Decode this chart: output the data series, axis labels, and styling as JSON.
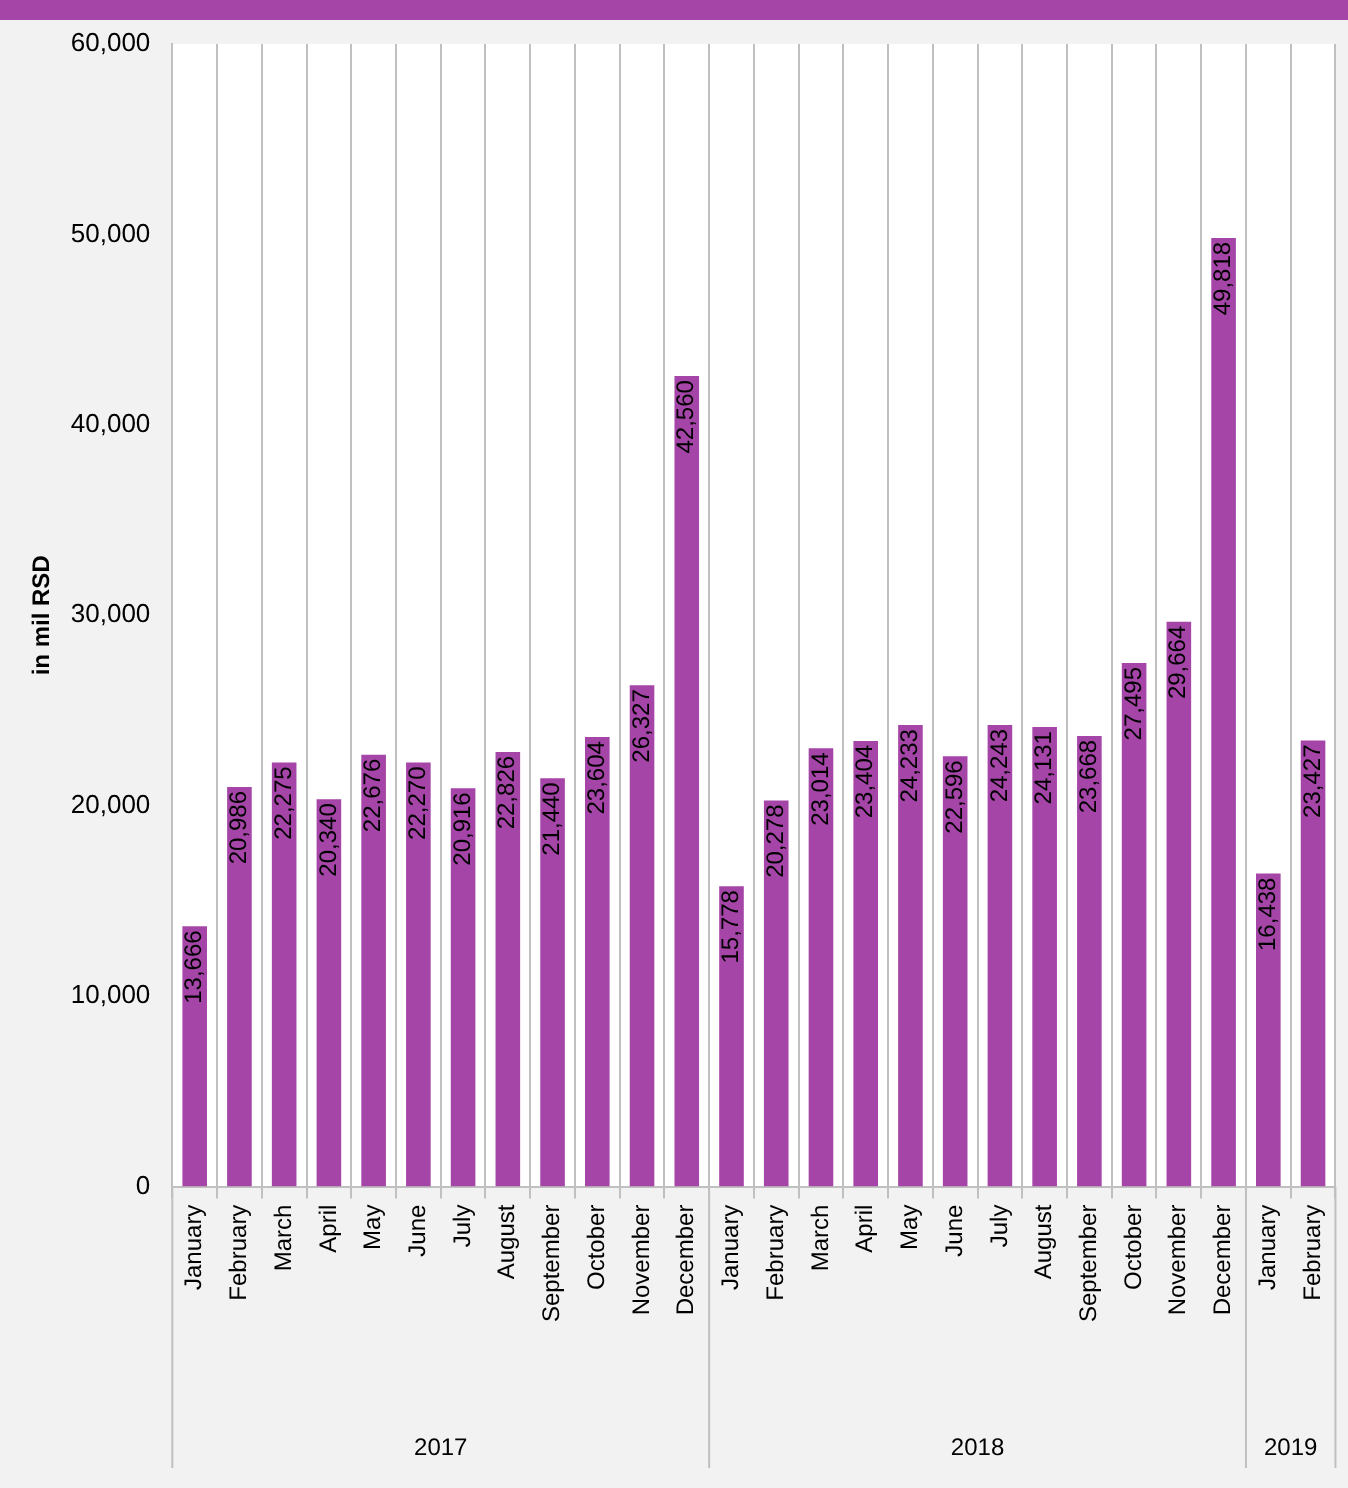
{
  "chart_data": {
    "type": "bar",
    "ylabel": "in mil RSD",
    "categories": [
      "January",
      "February",
      "March",
      "April",
      "May",
      "June",
      "July",
      "August",
      "September",
      "October",
      "November",
      "December",
      "January",
      "February",
      "March",
      "April",
      "May",
      "June",
      "July",
      "August",
      "September",
      "October",
      "November",
      "December",
      "January",
      "February"
    ],
    "values": [
      13666,
      20986,
      22275,
      20340,
      22676,
      22270,
      20916,
      22826,
      21440,
      23604,
      26327,
      42560,
      15778,
      20278,
      23014,
      23404,
      24233,
      22596,
      24243,
      24131,
      23668,
      27495,
      29664,
      49818,
      16438,
      23427
    ],
    "color": "#a545a8",
    "value_labels": [
      "13,666",
      "20,986",
      "22,275",
      "20,340",
      "22,676",
      "22,270",
      "20,916",
      "22,826",
      "21,440",
      "23,604",
      "26,327",
      "42,560",
      "15,778",
      "20,278",
      "23,014",
      "23,404",
      "24,233",
      "22,596",
      "24,243",
      "24,131",
      "23,668",
      "27,495",
      "29,664",
      "49,818",
      "16,438",
      "23,427"
    ],
    "ylim": [
      0,
      60000
    ],
    "yticks": [
      0,
      {
        "value": 10000,
        "label": "10,000"
      },
      {
        "value": 20000,
        "label": "20,000"
      },
      {
        "value": 30000,
        "label": "30,000"
      },
      {
        "value": 40000,
        "label": "40,000"
      },
      {
        "value": 50000,
        "label": "50,000"
      },
      {
        "value": 60000,
        "label": "60,000"
      }
    ],
    "grid": "x",
    "legend": false,
    "annotations": [
      "2017",
      "2018",
      "2019"
    ]
  }
}
